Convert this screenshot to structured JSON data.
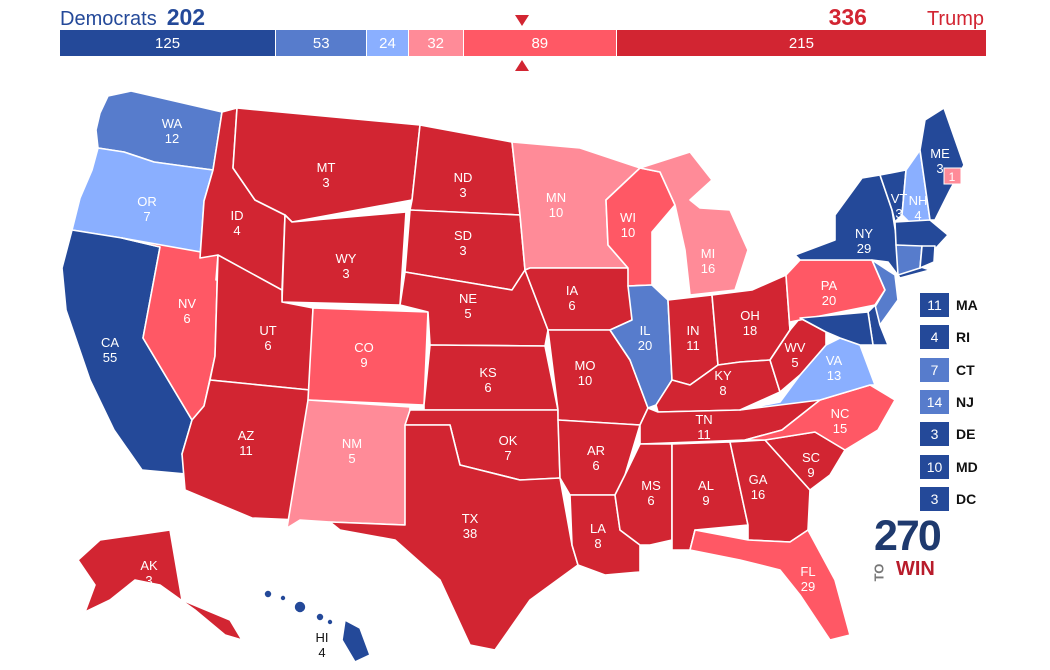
{
  "header": {
    "dem_label": "Democrats",
    "dem_total": "202",
    "rep_total": "336",
    "rep_label": "Trump"
  },
  "colors": {
    "safe_d": "#244999",
    "likely_d": "#577ccc",
    "lean_d": "#8aafff",
    "lean_r": "#ff8b98",
    "likely_r": "#ff5865",
    "safe_r": "#d22532"
  },
  "bar_segments": [
    {
      "label": "125",
      "value": 125,
      "rating": "safe_d"
    },
    {
      "label": "53",
      "value": 53,
      "rating": "likely_d"
    },
    {
      "label": "24",
      "value": 24,
      "rating": "lean_d"
    },
    {
      "label": "32",
      "value": 32,
      "rating": "lean_r"
    },
    {
      "label": "89",
      "value": 89,
      "rating": "likely_r"
    },
    {
      "label": "215",
      "value": 215,
      "rating": "safe_r"
    }
  ],
  "states": [
    {
      "abbr": "WA",
      "ev": "12",
      "rating": "likely_d"
    },
    {
      "abbr": "OR",
      "ev": "7",
      "rating": "lean_d"
    },
    {
      "abbr": "CA",
      "ev": "55",
      "rating": "safe_d"
    },
    {
      "abbr": "NV",
      "ev": "6",
      "rating": "likely_r"
    },
    {
      "abbr": "ID",
      "ev": "4",
      "rating": "safe_r"
    },
    {
      "abbr": "MT",
      "ev": "3",
      "rating": "safe_r"
    },
    {
      "abbr": "WY",
      "ev": "3",
      "rating": "safe_r"
    },
    {
      "abbr": "UT",
      "ev": "6",
      "rating": "safe_r"
    },
    {
      "abbr": "AZ",
      "ev": "11",
      "rating": "safe_r"
    },
    {
      "abbr": "CO",
      "ev": "9",
      "rating": "likely_r"
    },
    {
      "abbr": "NM",
      "ev": "5",
      "rating": "lean_r"
    },
    {
      "abbr": "ND",
      "ev": "3",
      "rating": "safe_r"
    },
    {
      "abbr": "SD",
      "ev": "3",
      "rating": "safe_r"
    },
    {
      "abbr": "NE",
      "ev": "5",
      "rating": "safe_r"
    },
    {
      "abbr": "KS",
      "ev": "6",
      "rating": "safe_r"
    },
    {
      "abbr": "OK",
      "ev": "7",
      "rating": "safe_r"
    },
    {
      "abbr": "TX",
      "ev": "38",
      "rating": "safe_r"
    },
    {
      "abbr": "MN",
      "ev": "10",
      "rating": "lean_r"
    },
    {
      "abbr": "IA",
      "ev": "6",
      "rating": "safe_r"
    },
    {
      "abbr": "MO",
      "ev": "10",
      "rating": "safe_r"
    },
    {
      "abbr": "AR",
      "ev": "6",
      "rating": "safe_r"
    },
    {
      "abbr": "LA",
      "ev": "8",
      "rating": "safe_r"
    },
    {
      "abbr": "WI",
      "ev": "10",
      "rating": "likely_r"
    },
    {
      "abbr": "IL",
      "ev": "20",
      "rating": "likely_d"
    },
    {
      "abbr": "MI",
      "ev": "16",
      "rating": "lean_r"
    },
    {
      "abbr": "IN",
      "ev": "11",
      "rating": "safe_r"
    },
    {
      "abbr": "OH",
      "ev": "18",
      "rating": "safe_r"
    },
    {
      "abbr": "KY",
      "ev": "8",
      "rating": "safe_r"
    },
    {
      "abbr": "TN",
      "ev": "11",
      "rating": "safe_r"
    },
    {
      "abbr": "MS",
      "ev": "6",
      "rating": "safe_r"
    },
    {
      "abbr": "AL",
      "ev": "9",
      "rating": "safe_r"
    },
    {
      "abbr": "GA",
      "ev": "16",
      "rating": "safe_r"
    },
    {
      "abbr": "FL",
      "ev": "29",
      "rating": "likely_r"
    },
    {
      "abbr": "SC",
      "ev": "9",
      "rating": "safe_r"
    },
    {
      "abbr": "NC",
      "ev": "15",
      "rating": "likely_r"
    },
    {
      "abbr": "VA",
      "ev": "13",
      "rating": "lean_d"
    },
    {
      "abbr": "WV",
      "ev": "5",
      "rating": "safe_r"
    },
    {
      "abbr": "PA",
      "ev": "20",
      "rating": "likely_r"
    },
    {
      "abbr": "NY",
      "ev": "29",
      "rating": "safe_d"
    },
    {
      "abbr": "VT",
      "ev": "3",
      "rating": "safe_d"
    },
    {
      "abbr": "NH",
      "ev": "4",
      "rating": "lean_d"
    },
    {
      "abbr": "ME",
      "ev": "3",
      "rating": "safe_d"
    },
    {
      "abbr": "ME-2",
      "ev": "1",
      "rating": "lean_r"
    },
    {
      "abbr": "AK",
      "ev": "3",
      "rating": "safe_r"
    },
    {
      "abbr": "HI",
      "ev": "4",
      "rating": "safe_d"
    }
  ],
  "small_states": [
    {
      "abbr": "MA",
      "ev": "11",
      "rating": "safe_d"
    },
    {
      "abbr": "RI",
      "ev": "4",
      "rating": "safe_d"
    },
    {
      "abbr": "CT",
      "ev": "7",
      "rating": "likely_d"
    },
    {
      "abbr": "NJ",
      "ev": "14",
      "rating": "likely_d"
    },
    {
      "abbr": "DE",
      "ev": "3",
      "rating": "safe_d"
    },
    {
      "abbr": "MD",
      "ev": "10",
      "rating": "safe_d"
    },
    {
      "abbr": "DC",
      "ev": "3",
      "rating": "safe_d"
    }
  ],
  "logo": {
    "number": "270",
    "to": "TO",
    "win": "WIN"
  }
}
